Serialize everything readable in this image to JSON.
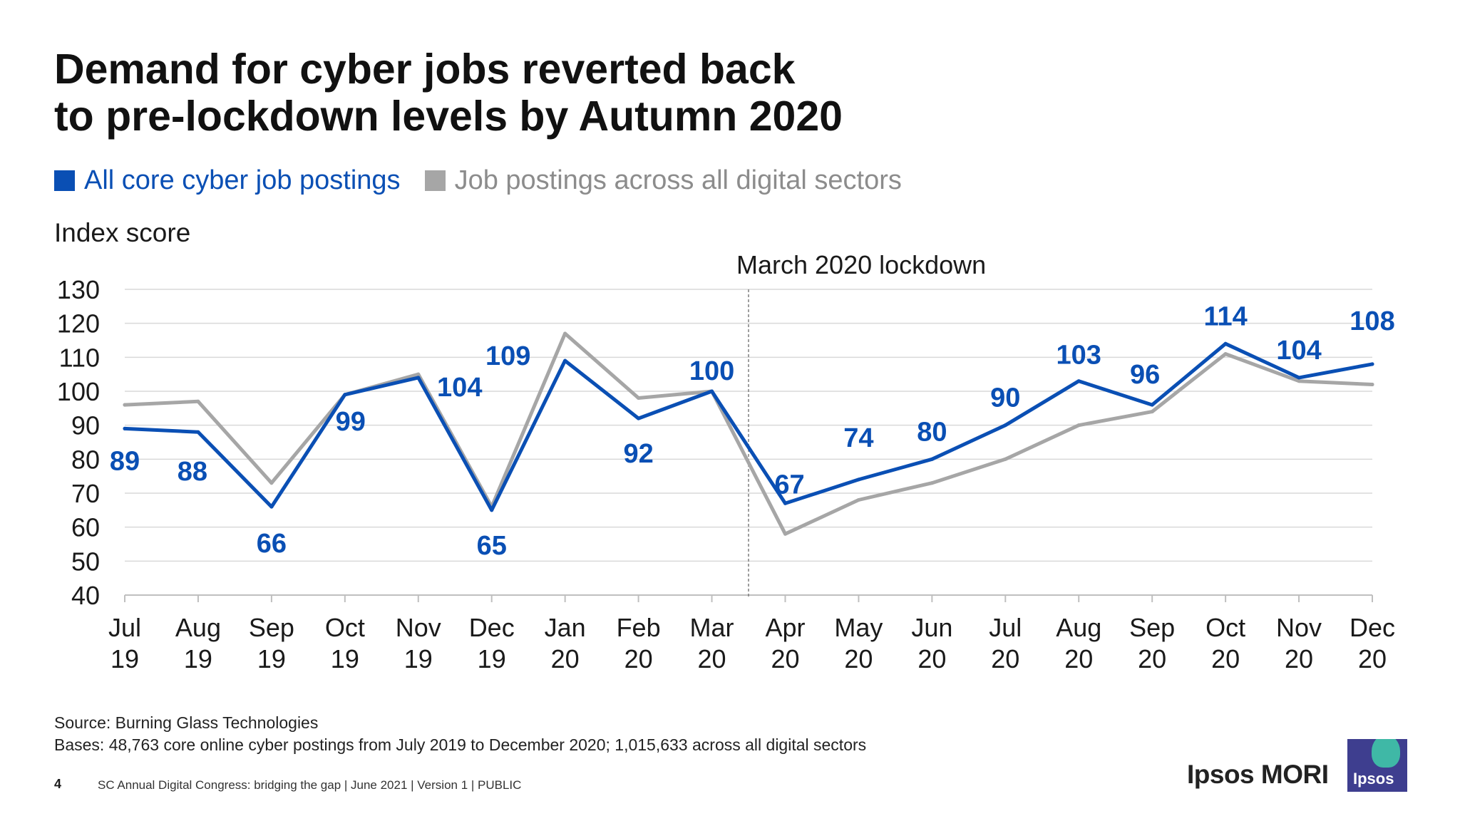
{
  "slide": {
    "title_line1": "Demand for cyber jobs reverted back",
    "title_line2": "to pre-lockdown levels by Autumn 2020",
    "y_axis_title": "Index score",
    "source": "Source: Burning Glass Technologies",
    "bases": "Bases: 48,763 core online cyber postings from July 2019 to December 2020; 1,015,633 across all digital sectors",
    "page_number": "4",
    "footer": "SC Annual Digital Congress: bridging the gap | June 2021 | Version 1 | PUBLIC",
    "brand": "Ipsos MORI",
    "logo_text": "Ipsos"
  },
  "colors": {
    "cyber": "#0a4fb4",
    "digital": "#a6a6a6",
    "grid": "#d9d9d9",
    "axis": "#bfbfbf"
  },
  "chart_data": {
    "type": "line",
    "title": "Demand for cyber jobs reverted back to pre-lockdown levels by Autumn 2020",
    "ylabel": "Index score",
    "xlabel": "",
    "ylim": [
      40,
      130
    ],
    "yticks": [
      40,
      50,
      60,
      70,
      80,
      90,
      100,
      110,
      120,
      130
    ],
    "grid": true,
    "legend_position": "top-left",
    "categories": [
      [
        "Jul",
        "19"
      ],
      [
        "Aug",
        "19"
      ],
      [
        "Sep",
        "19"
      ],
      [
        "Oct",
        "19"
      ],
      [
        "Nov",
        "19"
      ],
      [
        "Dec",
        "19"
      ],
      [
        "Jan",
        "20"
      ],
      [
        "Feb",
        "20"
      ],
      [
        "Mar",
        "20"
      ],
      [
        "Apr",
        "20"
      ],
      [
        "May",
        "20"
      ],
      [
        "Jun",
        "20"
      ],
      [
        "Jul",
        "20"
      ],
      [
        "Aug",
        "20"
      ],
      [
        "Sep",
        "20"
      ],
      [
        "Oct",
        "20"
      ],
      [
        "Nov",
        "20"
      ],
      [
        "Dec",
        "20"
      ]
    ],
    "series": [
      {
        "name": "All core cyber job postings",
        "values": [
          89,
          88,
          66,
          99,
          104,
          65,
          109,
          92,
          100,
          67,
          74,
          80,
          90,
          103,
          96,
          114,
          104,
          108
        ],
        "labeled": true
      },
      {
        "name": "Job postings across all digital sectors",
        "values": [
          96,
          97,
          73,
          99,
          105,
          66,
          117,
          98,
          100,
          58,
          68,
          73,
          80,
          90,
          94,
          111,
          103,
          102
        ],
        "labeled": false
      }
    ],
    "annotation": {
      "text": "March 2020 lockdown",
      "between_categories": [
        8,
        9
      ]
    }
  }
}
